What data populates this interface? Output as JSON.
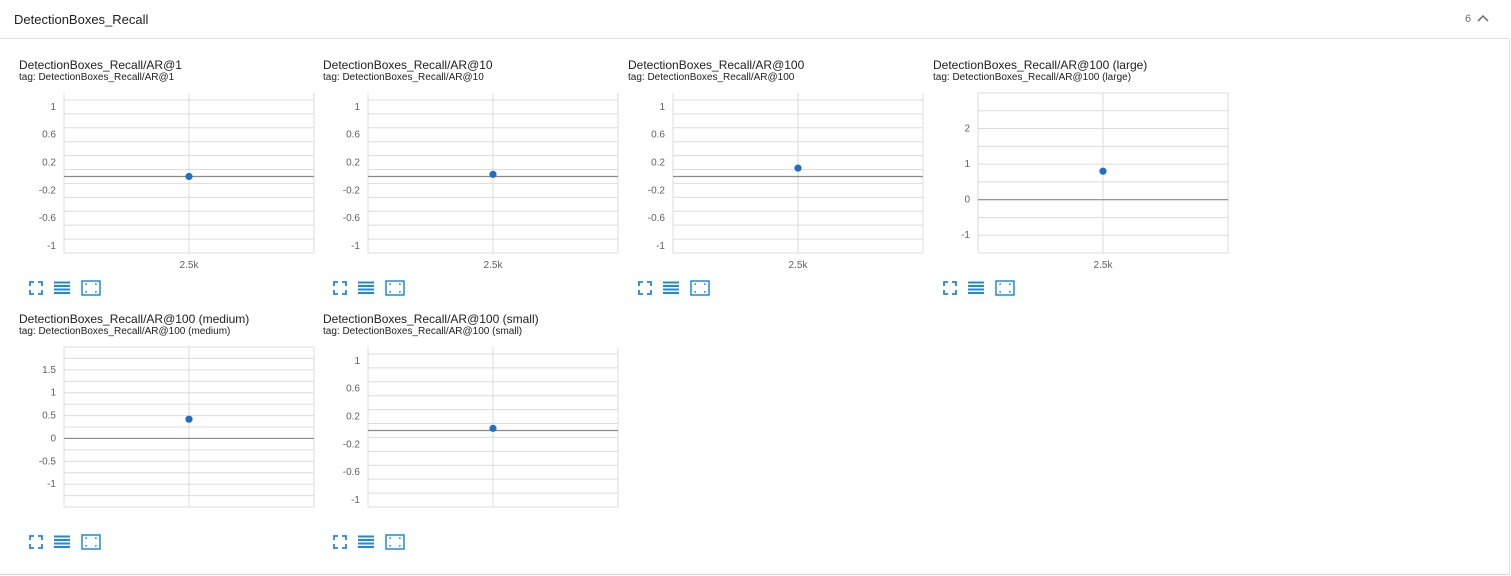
{
  "section": {
    "title": "DetectionBoxes_Recall",
    "count": "6",
    "chevron_icon": "chevron-up-icon"
  },
  "colors": {
    "point": "#1f6fc5",
    "grid": "#dcdcdc",
    "zero_line": "#8a8a8a",
    "icon": "#1e88e5"
  },
  "toolbar_icons": [
    "fullscreen-icon",
    "data-table-icon",
    "fit-domain-icon"
  ],
  "cards": [
    {
      "title": "DetectionBoxes_Recall/AR@1",
      "tag": "tag: DetectionBoxes_Recall/AR@1",
      "chart_data": {
        "type": "scatter",
        "x_ticks": [
          "2.5k"
        ],
        "y_ticks": [
          "1",
          "0.6",
          "0.2",
          "-0.2",
          "-0.6",
          "-1"
        ],
        "ylim": [
          -1.1,
          1.2
        ],
        "points": [
          {
            "x": "2.5k",
            "y": 0.0
          }
        ]
      }
    },
    {
      "title": "DetectionBoxes_Recall/AR@10",
      "tag": "tag: DetectionBoxes_Recall/AR@10",
      "chart_data": {
        "type": "scatter",
        "x_ticks": [
          "2.5k"
        ],
        "y_ticks": [
          "1",
          "0.6",
          "0.2",
          "-0.2",
          "-0.6",
          "-1"
        ],
        "ylim": [
          -1.1,
          1.2
        ],
        "points": [
          {
            "x": "2.5k",
            "y": 0.03
          }
        ]
      }
    },
    {
      "title": "DetectionBoxes_Recall/AR@100",
      "tag": "tag: DetectionBoxes_Recall/AR@100",
      "chart_data": {
        "type": "scatter",
        "x_ticks": [
          "2.5k"
        ],
        "y_ticks": [
          "1",
          "0.6",
          "0.2",
          "-0.2",
          "-0.6",
          "-1"
        ],
        "ylim": [
          -1.1,
          1.2
        ],
        "points": [
          {
            "x": "2.5k",
            "y": 0.12
          }
        ]
      }
    },
    {
      "title": "DetectionBoxes_Recall/AR@100 (large)",
      "tag": "tag: DetectionBoxes_Recall/AR@100 (large)",
      "chart_data": {
        "type": "scatter",
        "x_ticks": [
          "2.5k"
        ],
        "y_ticks": [
          "2",
          "1",
          "0",
          "-1"
        ],
        "ylim": [
          -1.5,
          3.0
        ],
        "points": [
          {
            "x": "2.5k",
            "y": 0.8
          }
        ]
      }
    },
    {
      "title": "DetectionBoxes_Recall/AR@100 (medium)",
      "tag": "tag: DetectionBoxes_Recall/AR@100 (medium)",
      "chart_data": {
        "type": "scatter",
        "x_ticks": [],
        "y_ticks": [
          "1.5",
          "1",
          "0.5",
          "0",
          "-0.5",
          "-1"
        ],
        "ylim": [
          -1.5,
          2.0
        ],
        "points": [
          {
            "x": "2.5k",
            "y": 0.42
          }
        ]
      }
    },
    {
      "title": "DetectionBoxes_Recall/AR@100 (small)",
      "tag": "tag: DetectionBoxes_Recall/AR@100 (small)",
      "chart_data": {
        "type": "scatter",
        "x_ticks": [],
        "y_ticks": [
          "1",
          "0.6",
          "0.2",
          "-0.2",
          "-0.6",
          "-1"
        ],
        "ylim": [
          -1.1,
          1.2
        ],
        "points": [
          {
            "x": "2.5k",
            "y": 0.03
          }
        ]
      }
    }
  ]
}
